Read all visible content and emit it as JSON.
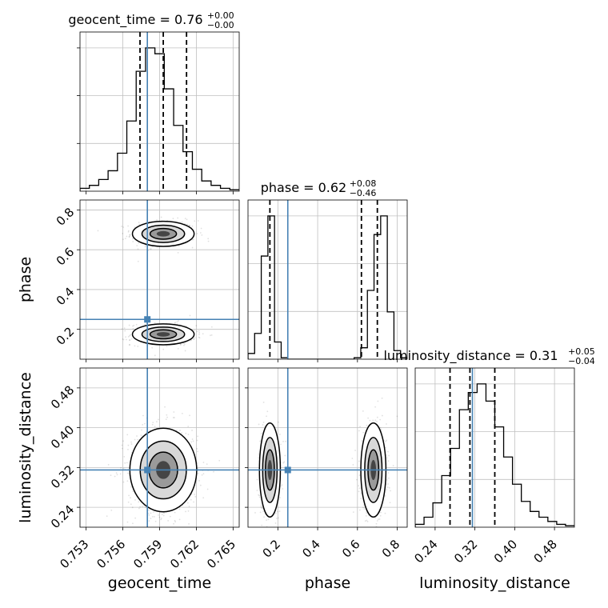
{
  "chart_data": {
    "type": "corner",
    "parameters": [
      "geocent_time",
      "phase",
      "luminosity_distance"
    ],
    "truth": {
      "geocent_time": 0.758,
      "phase": 0.25,
      "luminosity_distance": 0.315
    },
    "colors": {
      "truth": "#4682b4",
      "hist": "#000000",
      "grid": "#c0c0c0",
      "quantile": "#000000"
    },
    "ranges": {
      "geocent_time": [
        0.7525,
        0.7655
      ],
      "phase": [
        0.05,
        0.85
      ],
      "luminosity_distance": [
        0.2,
        0.52
      ]
    },
    "ticks": {
      "geocent_time": [
        "0.753",
        "0.756",
        "0.759",
        "0.762",
        "0.765"
      ],
      "phase": [
        "0.2",
        "0.4",
        "0.6",
        "0.8"
      ],
      "luminosity_distance": [
        "0.24",
        "0.32",
        "0.40",
        "0.48"
      ]
    },
    "titles": [
      {
        "param": "geocent_time",
        "label": "geocent_time = 0.76",
        "sup": "+0.00",
        "sub": "−0.00"
      },
      {
        "param": "phase",
        "label": "phase = 0.62",
        "sup": "+0.08",
        "sub": "−0.46"
      },
      {
        "param": "luminosity_distance",
        "label": "luminosity_distance = 0.31",
        "sup": "+0.05",
        "sub": "−0.04"
      }
    ],
    "quantiles": {
      "geocent_time": [
        0.7574,
        0.7593,
        0.7612
      ],
      "phase": [
        0.16,
        0.62,
        0.7
      ],
      "luminosity_distance": [
        0.27,
        0.31,
        0.36
      ]
    },
    "histograms": {
      "geocent_time": {
        "range": [
          0.7525,
          0.7655
        ],
        "counts": [
          2,
          4,
          8,
          14,
          26,
          48,
          82,
          98,
          94,
          70,
          45,
          27,
          15,
          7,
          4,
          2,
          1
        ]
      },
      "phase": {
        "range": [
          0.05,
          0.85
        ],
        "counts": [
          4,
          18,
          72,
          100,
          12,
          1,
          0,
          0,
          0,
          0,
          0,
          0,
          0,
          0,
          0,
          0,
          1,
          8,
          48,
          87,
          100,
          33,
          6,
          1
        ]
      },
      "luminosity_distance": {
        "range": [
          0.2,
          0.52
        ],
        "counts": [
          2,
          7,
          17,
          36,
          55,
          82,
          94,
          100,
          88,
          70,
          49,
          30,
          18,
          11,
          7,
          4,
          2,
          1
        ]
      }
    },
    "modes": {
      "geocent_time|phase": [
        [
          0.7593,
          0.68,
          0.0012,
          0.03,
          0.55
        ],
        [
          0.7593,
          0.175,
          0.0012,
          0.025,
          0.45
        ]
      ],
      "geocent_time|luminosity_distance": [
        [
          0.7593,
          0.315,
          0.0013,
          0.04,
          1.0
        ]
      ],
      "phase|luminosity_distance": [
        [
          0.16,
          0.315,
          0.025,
          0.045,
          0.45
        ],
        [
          0.68,
          0.315,
          0.03,
          0.045,
          0.55
        ]
      ]
    }
  }
}
